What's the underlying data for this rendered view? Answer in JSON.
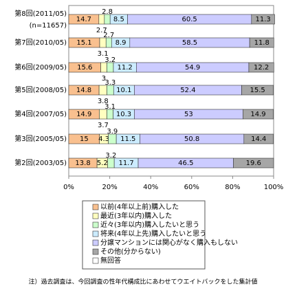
{
  "chart_data": {
    "type": "stacked-bar-horizontal",
    "categories": [
      "第8回(2011/05)",
      "第7回(2010/05)",
      "第6回(2009/05)",
      "第5回(2008/05)",
      "第4回(2007/05)",
      "第3回(2005/05)",
      "第2回(2003/05)"
    ],
    "sample_note": "(n=11657)",
    "series": [
      {
        "name": "以前(4年以上前)購入した",
        "color": "#f9c08f",
        "values": [
          14.7,
          15.1,
          15.6,
          14.8,
          14.9,
          15.0,
          13.8
        ]
      },
      {
        "name": "最近(3年以内)購入した",
        "color": "#ffffc0",
        "values": [
          2.7,
          3.1,
          3.0,
          3.8,
          3.7,
          4.3,
          5.2
        ]
      },
      {
        "name": "近々(3年以内)購入したいと思う",
        "color": "#ccffcc",
        "values": [
          2.8,
          2.7,
          3.2,
          3.3,
          3.1,
          3.9,
          3.2
        ]
      },
      {
        "name": "将来(4年以上先)購入したいと思う",
        "color": "#ccecff",
        "values": [
          8.5,
          8.9,
          11.2,
          10.1,
          10.3,
          11.5,
          11.7
        ]
      },
      {
        "name": "分譲マンションには関心がなく購入もしない",
        "color": "#ccccff",
        "values": [
          60.5,
          58.5,
          54.9,
          52.4,
          53.0,
          50.8,
          46.5
        ]
      },
      {
        "name": "その他(分からない)",
        "color": "#a6a6a6",
        "values": [
          11.3,
          11.8,
          12.2,
          15.5,
          14.9,
          14.4,
          19.6
        ]
      },
      {
        "name": "無回答",
        "color": "#ffffff",
        "values": [
          0,
          0,
          0,
          0,
          0,
          0,
          0
        ]
      }
    ],
    "xlim": [
      0,
      100
    ],
    "xticks": [
      {
        "value": 0,
        "label": "0%"
      },
      {
        "value": 20,
        "label": "20%"
      },
      {
        "value": 40,
        "label": "40%"
      },
      {
        "value": 60,
        "label": "60%"
      },
      {
        "value": 80,
        "label": "80%"
      },
      {
        "value": 100,
        "label": "100%"
      }
    ],
    "note": "注）過去調査は、今回調査の性年代構成比にあわせてウエイトバックをした集計値"
  }
}
